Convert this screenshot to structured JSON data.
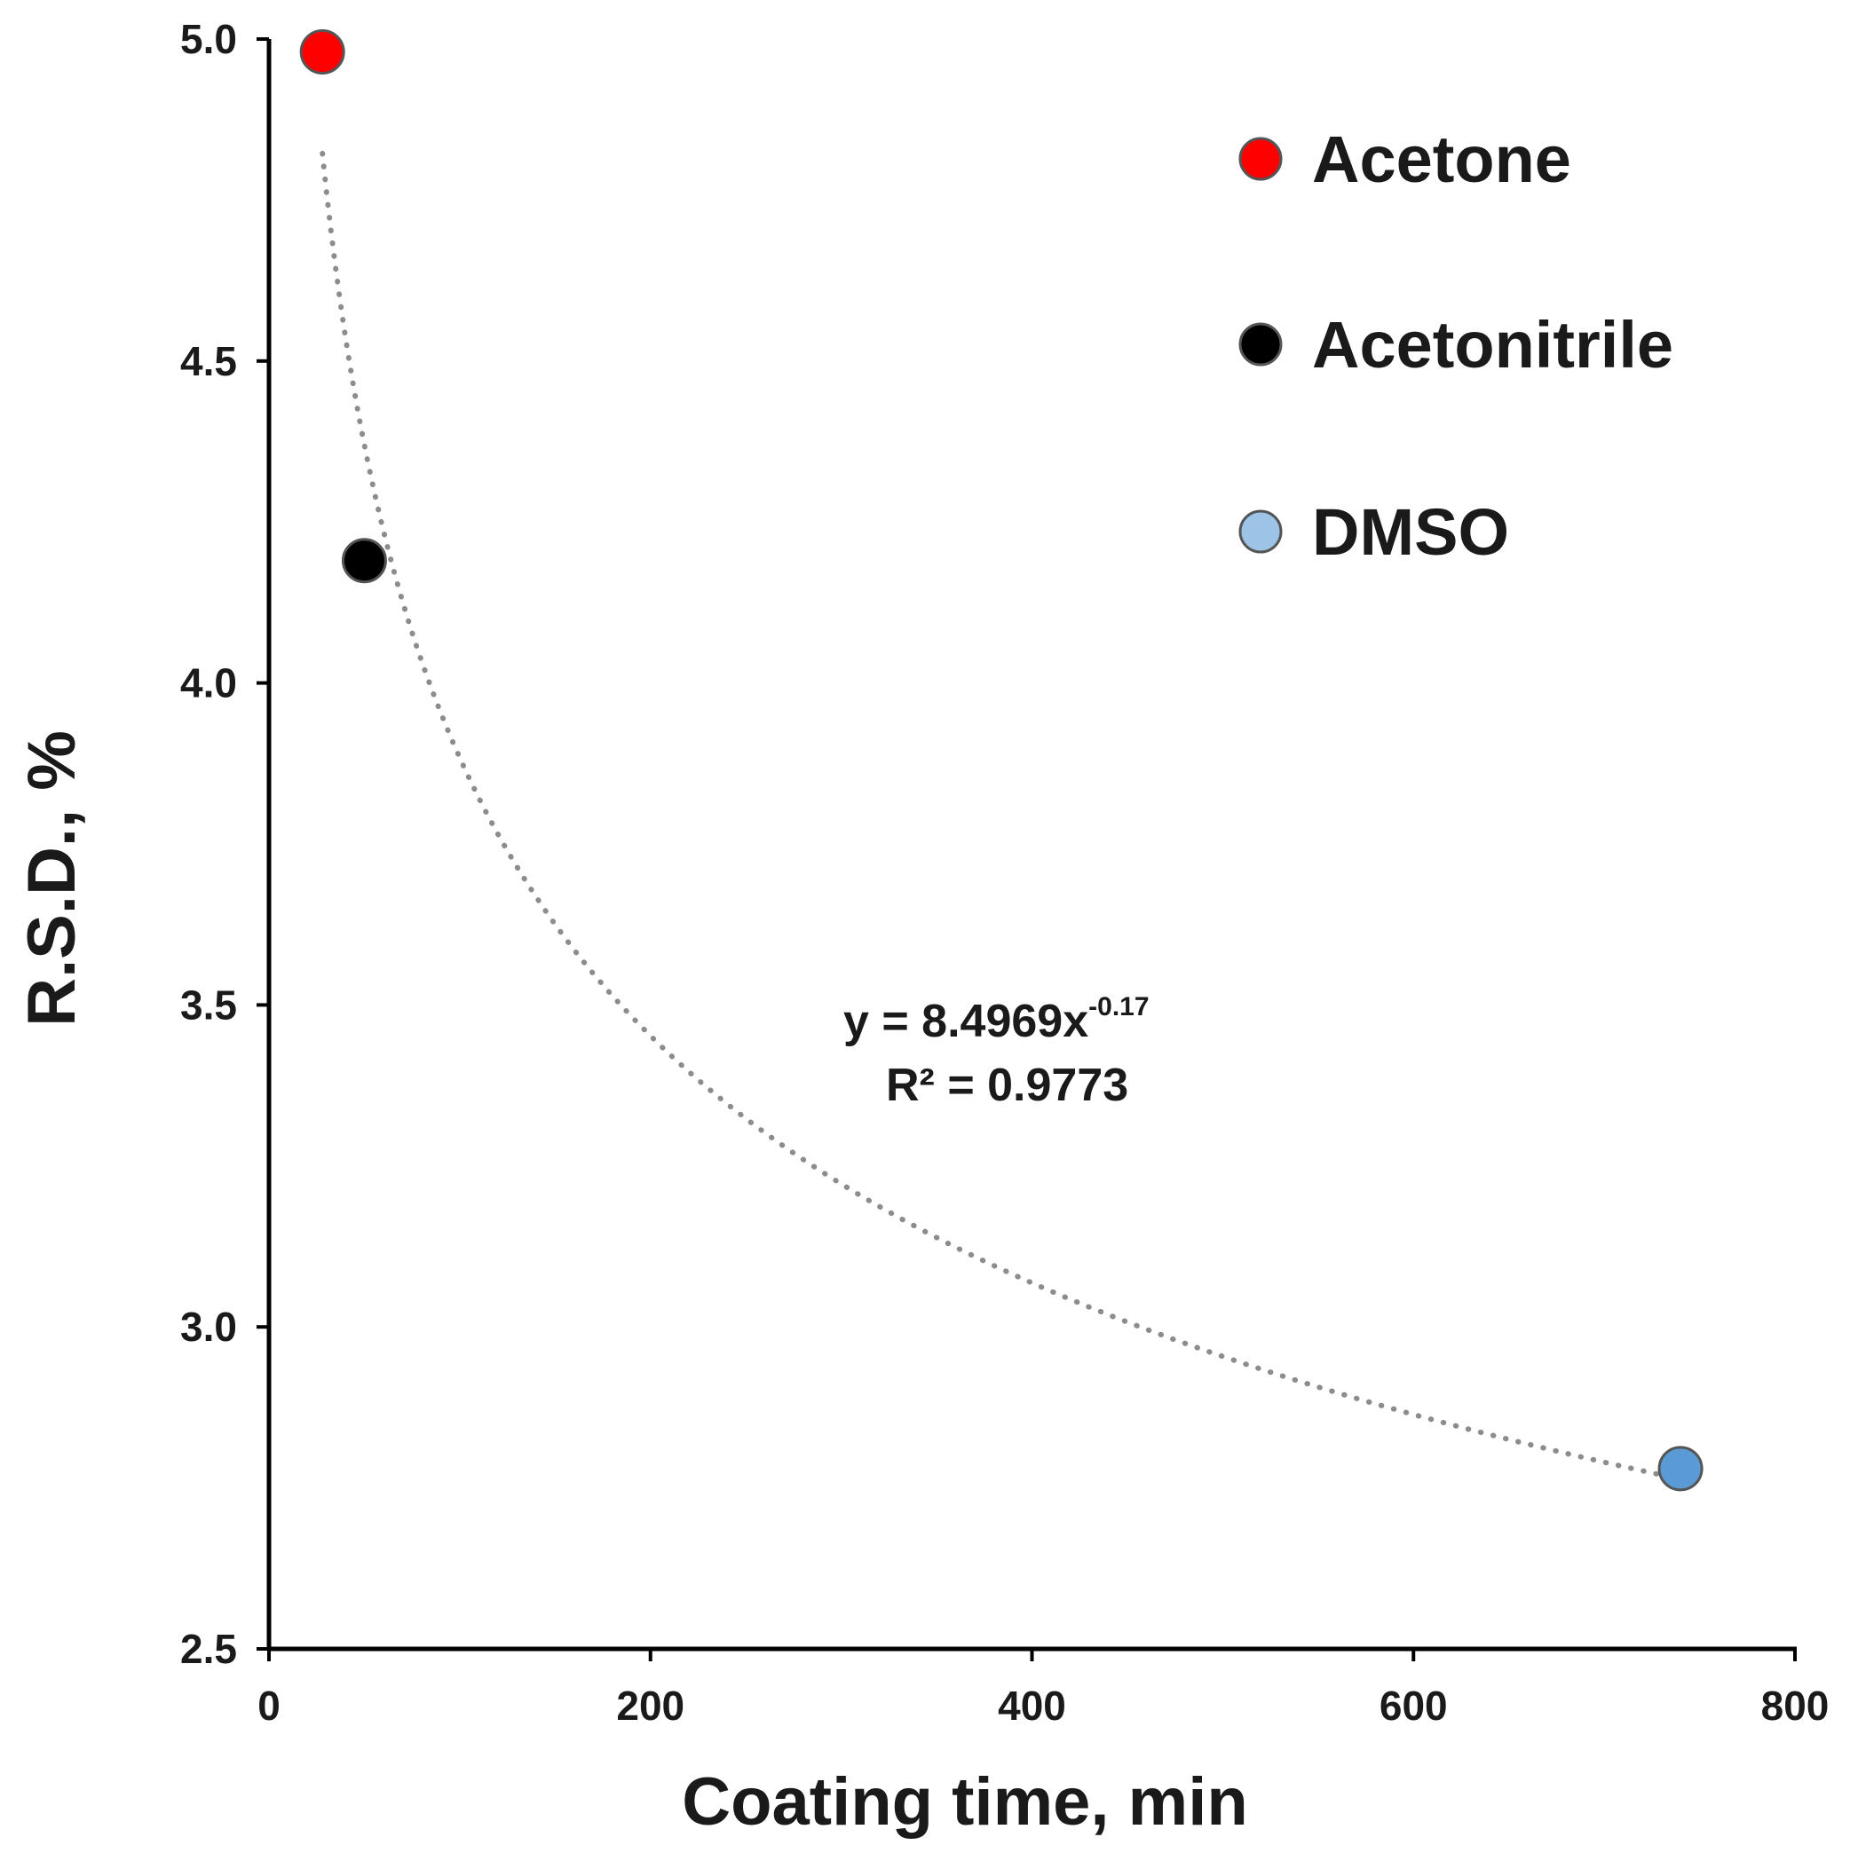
{
  "chart_data": {
    "type": "scatter",
    "title": "",
    "xlabel": "Coating time, min",
    "ylabel": "R.S.D., %",
    "xlim": [
      0,
      800
    ],
    "ylim": [
      2.5,
      5.0
    ],
    "xticks": [
      0,
      200,
      400,
      600,
      800
    ],
    "xtick_labels": [
      "0",
      "200",
      "400",
      "600",
      "800"
    ],
    "yticks": [
      2.5,
      3.0,
      3.5,
      4.0,
      4.5,
      5.0
    ],
    "ytick_labels": [
      "2.5",
      "3.0",
      "3.5",
      "4.0",
      "4.5",
      "5.0"
    ],
    "grid": false,
    "legend_position": "top-right",
    "series": [
      {
        "name": "Acetone",
        "color": "#ff0000",
        "x": [
          28
        ],
        "y": [
          4.98
        ]
      },
      {
        "name": "Acetonitrile",
        "color": "#000000",
        "x": [
          50
        ],
        "y": [
          4.19
        ]
      },
      {
        "name": "DMSO",
        "color": "#5b9bd5",
        "legend_color": "#9dc3e6",
        "x": [
          740
        ],
        "y": [
          2.78
        ]
      }
    ],
    "trendline": {
      "type": "power",
      "coefficient": 8.4969,
      "exponent": -0.17,
      "x_range": [
        28,
        740
      ],
      "color": "#8c8c8c",
      "style": "dotted"
    },
    "annotations": {
      "equation_base": "y = 8.4969x",
      "equation_exponent": "-0.17",
      "r_squared": "R² = 0.9773"
    }
  }
}
